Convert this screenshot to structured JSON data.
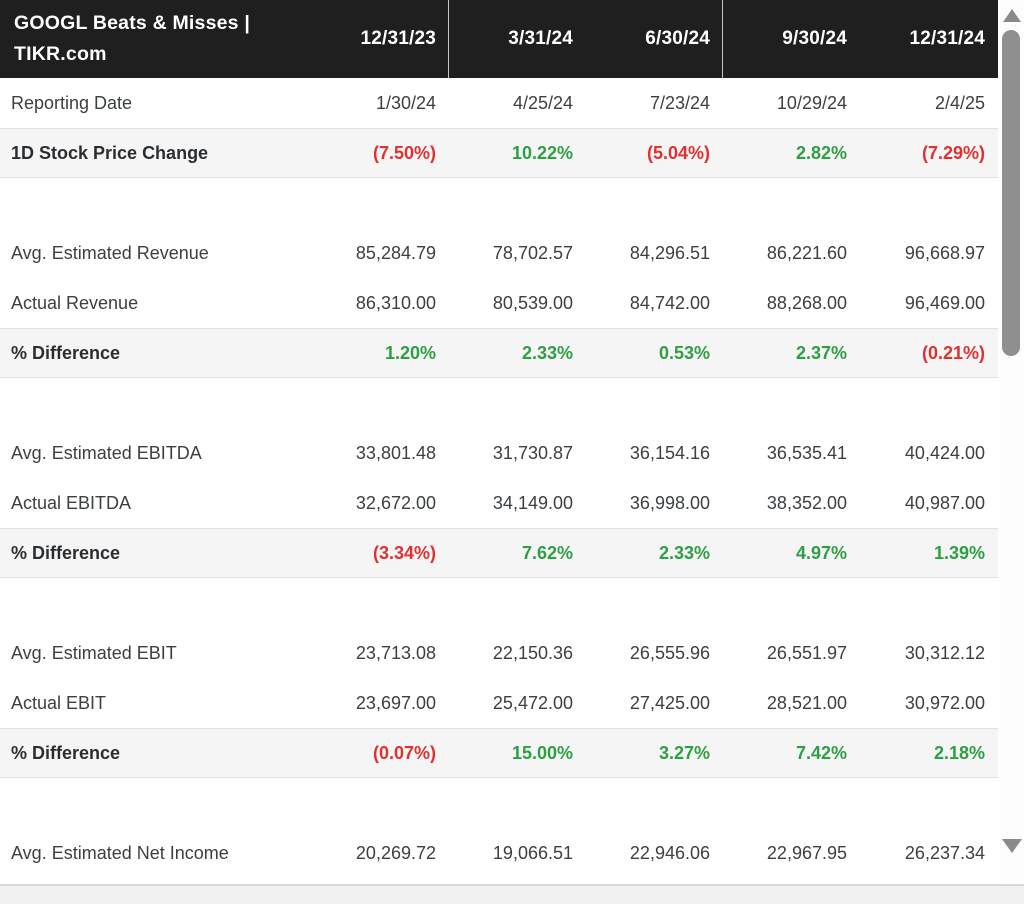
{
  "table": {
    "title": "GOOGL Beats & Misses | TIKR.com",
    "columns": [
      "12/31/23",
      "3/31/24",
      "6/30/24",
      "9/30/24",
      "12/31/24"
    ],
    "rows": [
      {
        "label": "Reporting Date",
        "type": "date",
        "values": [
          "1/30/24",
          "4/25/24",
          "7/23/24",
          "10/29/24",
          "2/4/25"
        ]
      },
      {
        "label": "1D Stock Price Change",
        "type": "pct",
        "values": [
          "(7.50%)",
          "10.22%",
          "(5.04%)",
          "2.82%",
          "(7.29%)"
        ]
      },
      {
        "type": "spacer"
      },
      {
        "label": "Avg. Estimated Revenue",
        "type": "num",
        "values": [
          "85,284.79",
          "78,702.57",
          "84,296.51",
          "86,221.60",
          "96,668.97"
        ]
      },
      {
        "label": "Actual Revenue",
        "type": "num",
        "values": [
          "86,310.00",
          "80,539.00",
          "84,742.00",
          "88,268.00",
          "96,469.00"
        ]
      },
      {
        "label": "% Difference",
        "type": "pct",
        "values": [
          "1.20%",
          "2.33%",
          "0.53%",
          "2.37%",
          "(0.21%)"
        ]
      },
      {
        "type": "spacer"
      },
      {
        "label": "Avg. Estimated EBITDA",
        "type": "num",
        "values": [
          "33,801.48",
          "31,730.87",
          "36,154.16",
          "36,535.41",
          "40,424.00"
        ]
      },
      {
        "label": "Actual EBITDA",
        "type": "num",
        "values": [
          "32,672.00",
          "34,149.00",
          "36,998.00",
          "38,352.00",
          "40,987.00"
        ]
      },
      {
        "label": "% Difference",
        "type": "pct",
        "values": [
          "(3.34%)",
          "7.62%",
          "2.33%",
          "4.97%",
          "1.39%"
        ]
      },
      {
        "type": "spacer"
      },
      {
        "label": "Avg. Estimated EBIT",
        "type": "num",
        "values": [
          "23,713.08",
          "22,150.36",
          "26,555.96",
          "26,551.97",
          "30,312.12"
        ]
      },
      {
        "label": "Actual EBIT",
        "type": "num",
        "values": [
          "23,697.00",
          "25,472.00",
          "27,425.00",
          "28,521.00",
          "30,972.00"
        ]
      },
      {
        "label": "% Difference",
        "type": "pct",
        "values": [
          "(0.07%)",
          "15.00%",
          "3.27%",
          "7.42%",
          "2.18%"
        ]
      },
      {
        "type": "spacer"
      },
      {
        "label": "Avg. Estimated Net Income",
        "type": "num",
        "values": [
          "20,269.72",
          "19,066.51",
          "22,946.06",
          "22,967.95",
          "26,237.34"
        ]
      }
    ]
  },
  "colors": {
    "header_bg": "#1f1f1f",
    "positive": "#2f9e44",
    "negative": "#e03131"
  },
  "icons": {
    "scroll_up": "triangle-up",
    "scroll_down": "triangle-down"
  }
}
